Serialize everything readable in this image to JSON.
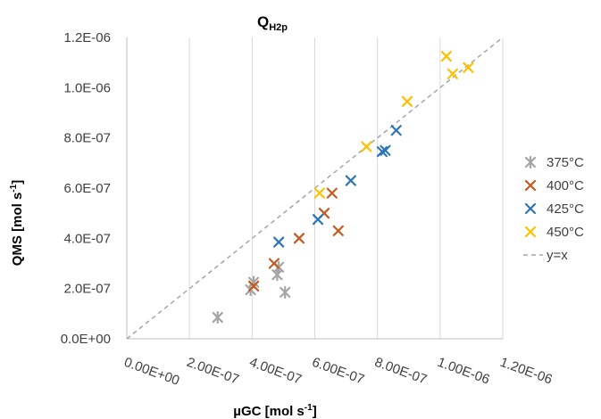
{
  "chart_data": {
    "type": "scatter",
    "title_main": "Q",
    "title_sub": "H2p",
    "xlabel_main": "µGC [mol s",
    "xlabel_sup": "-1",
    "xlabel_end": "]",
    "ylabel_main": "QMS  [mol s",
    "ylabel_sup": "-1",
    "ylabel_end": "]",
    "xlim": [
      0,
      1.2e-06
    ],
    "ylim": [
      0,
      1.2e-06
    ],
    "x_ticks": [
      0,
      2e-07,
      4e-07,
      6e-07,
      8e-07,
      1e-06,
      1.2e-06
    ],
    "x_tick_labels": [
      "0.00E+00",
      "2.00E-07",
      "4.00E-07",
      "6.00E-07",
      "8.00E-07",
      "1.00E-06",
      "1.20E-06"
    ],
    "y_ticks": [
      0,
      2e-07,
      4e-07,
      6e-07,
      8e-07,
      1e-06,
      1.2e-06
    ],
    "y_tick_labels": [
      "0.0E+00",
      "2.0E-07",
      "4.0E-07",
      "6.0E-07",
      "8.0E-07",
      "1.0E-06",
      "1.2E-06"
    ],
    "grid": "vertical",
    "legend_position": "right",
    "series": [
      {
        "name": "375°C",
        "color": "#a5a5a5",
        "marker": "asterisk",
        "points": [
          [
            2.9e-07,
            8.5e-08
          ],
          [
            3.95e-07,
            1.95e-07
          ],
          [
            4.05e-07,
            2.25e-07
          ],
          [
            4.8e-07,
            2.55e-07
          ],
          [
            4.85e-07,
            2.85e-07
          ],
          [
            5.05e-07,
            1.85e-07
          ]
        ]
      },
      {
        "name": "400°C",
        "color": "#c55a1e",
        "marker": "x",
        "points": [
          [
            4.05e-07,
            2.1e-07
          ],
          [
            4.7e-07,
            3e-07
          ],
          [
            5.5e-07,
            4e-07
          ],
          [
            6.3e-07,
            5e-07
          ],
          [
            6.55e-07,
            5.8e-07
          ],
          [
            6.75e-07,
            4.3e-07
          ]
        ]
      },
      {
        "name": "425°C",
        "color": "#2e75b6",
        "marker": "x",
        "points": [
          [
            4.85e-07,
            3.85e-07
          ],
          [
            6.1e-07,
            4.75e-07
          ],
          [
            7.15e-07,
            6.3e-07
          ],
          [
            8.15e-07,
            7.45e-07
          ],
          [
            8.25e-07,
            7.5e-07
          ],
          [
            8.6e-07,
            8.3e-07
          ]
        ]
      },
      {
        "name": "450°C",
        "color": "#ffc000",
        "marker": "x",
        "points": [
          [
            6.15e-07,
            5.8e-07
          ],
          [
            7.65e-07,
            7.65e-07
          ],
          [
            8.95e-07,
            9.45e-07
          ],
          [
            1.02e-06,
            1.125e-06
          ],
          [
            1.04e-06,
            1.055e-06
          ],
          [
            1.09e-06,
            1.08e-06
          ]
        ]
      }
    ],
    "reference_line": {
      "name": "y=x",
      "color": "#a5a5a5",
      "style": "dashed"
    }
  }
}
